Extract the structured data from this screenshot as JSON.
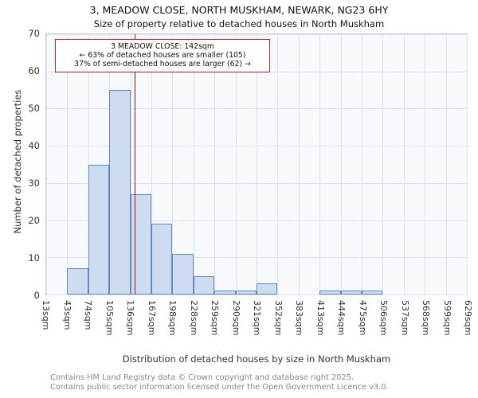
{
  "chart_data": {
    "type": "bar",
    "title": "3, MEADOW CLOSE, NORTH MUSKHAM, NEWARK, NG23 6HY",
    "subtitle": "Size of property relative to detached houses in North Muskham",
    "ylabel": "Number of detached properties",
    "xlabel": "Distribution of detached houses by size in North Muskham",
    "ylim": [
      0,
      70
    ],
    "yticks": [
      0,
      10,
      20,
      30,
      40,
      50,
      60,
      70
    ],
    "bin_edges": [
      13,
      43,
      74,
      105,
      136,
      167,
      198,
      228,
      259,
      290,
      321,
      352,
      383,
      413,
      444,
      475,
      506,
      537,
      568,
      599,
      629
    ],
    "bin_edge_labels": [
      "13sqm",
      "43sqm",
      "74sqm",
      "105sqm",
      "136sqm",
      "167sqm",
      "198sqm",
      "228sqm",
      "259sqm",
      "290sqm",
      "321sqm",
      "352sqm",
      "383sqm",
      "413sqm",
      "444sqm",
      "475sqm",
      "506sqm",
      "537sqm",
      "568sqm",
      "599sqm",
      "629sqm"
    ],
    "values": [
      0,
      7,
      35,
      55,
      27,
      19,
      11,
      5,
      1,
      1,
      3,
      0,
      0,
      1,
      1,
      1,
      0,
      0,
      0,
      0
    ],
    "grid": true,
    "marker": {
      "x": 142,
      "color": "#a01018"
    },
    "annotation": {
      "line1": "3 MEADOW CLOSE: 142sqm",
      "line2": "← 63% of detached houses are smaller (105)",
      "line3": "37% of semi-detached houses are larger (62) →"
    },
    "colors": {
      "bar_fill": "#cddcf0",
      "bar_border": "#6389c0",
      "marker_line": "#a01018",
      "annotation_border": "#cc2020",
      "grid_line": "#dce3f0"
    }
  },
  "footer": {
    "line1": "Contains HM Land Registry data © Crown copyright and database right 2025.",
    "line2": "Contains public sector information licensed under the Open Government Licence v3.0."
  }
}
